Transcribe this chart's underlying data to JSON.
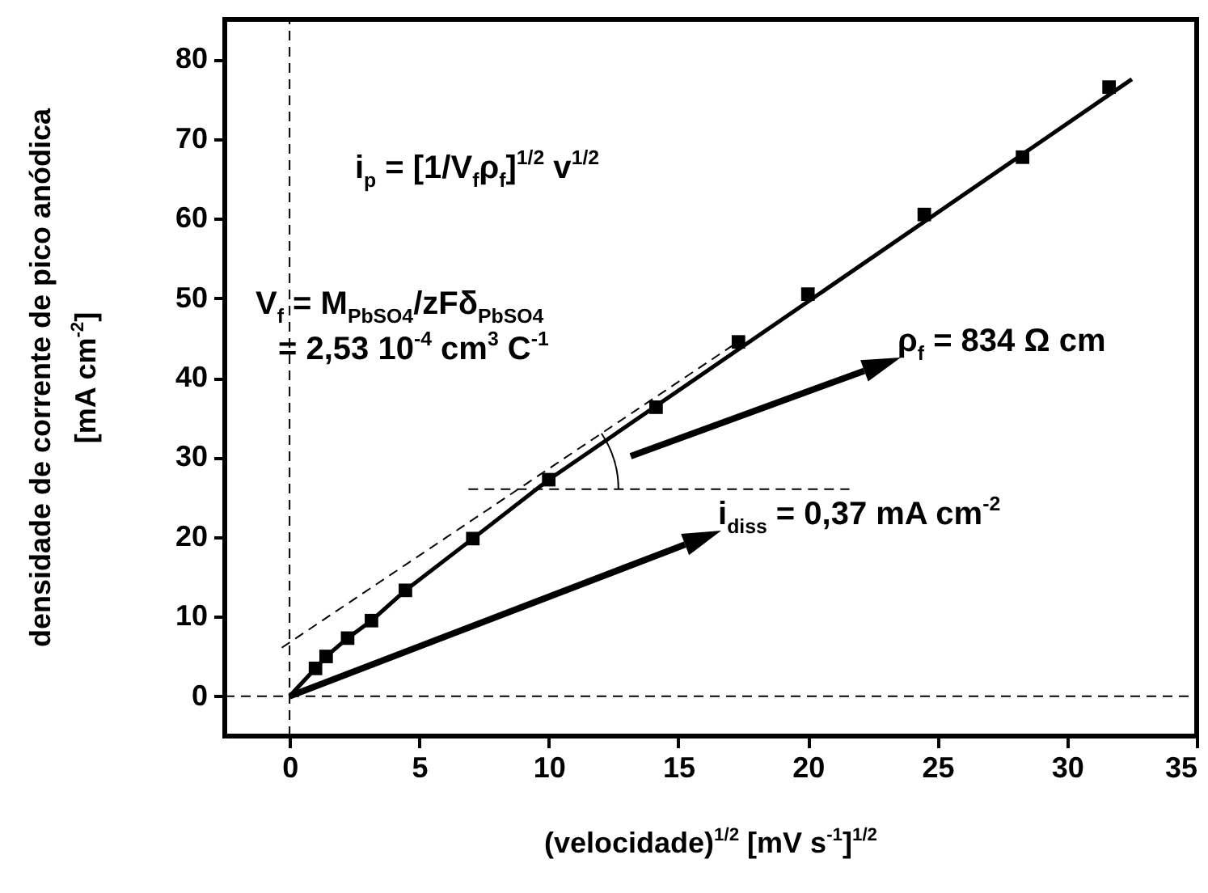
{
  "chart_data": {
    "type": "scatter",
    "xlabel": "(velocidade)$^{1/2}$ [mV s$^{-1}$]$^{1/2}$",
    "ylabel": "densidade de corrente de pico anódica\n[mA cm$^{-2}$]",
    "x": [
      1,
      1.41,
      2.24,
      3.16,
      4.47,
      7.07,
      10,
      14.14,
      17.32,
      20,
      24.49,
      28.28,
      31.62
    ],
    "series": [
      {
        "type": "scatter",
        "color": "#000000",
        "marker": "square",
        "values": [
          3.5,
          5,
          7.3,
          9.5,
          13.3,
          19.8,
          27.2,
          36.3,
          44.5,
          50.5,
          60.5,
          67.7,
          76.5
        ]
      },
      {
        "type": "line",
        "color": "#000000",
        "marker": "none",
        "x": [
          0,
          1,
          1.41,
          2.24,
          3.16,
          4.47,
          7.07,
          10,
          32.5
        ],
        "values": [
          0,
          3.5,
          5,
          7.3,
          9.5,
          13.3,
          19.8,
          27.2,
          77.5
        ]
      },
      {
        "type": "line",
        "color": "#000000",
        "marker": "none",
        "line_style": "dashed",
        "x": [
          -0.3,
          17.3
        ],
        "values": [
          6.1,
          44.5
        ]
      },
      {
        "type": "line",
        "color": "#000000",
        "marker": "none",
        "line_style": "dashed",
        "x": [
          6.9,
          21.6
        ],
        "values": [
          26,
          26
        ]
      },
      {
        "type": "line",
        "color": "#000000",
        "marker": "none",
        "line_style": "dashed",
        "x": [
          0,
          0
        ],
        "values": [
          -5,
          85
        ]
      },
      {
        "type": "line",
        "color": "#000000",
        "marker": "none",
        "line_style": "dashed",
        "x": [
          -2.5,
          35
        ],
        "values": [
          0,
          0
        ]
      }
    ],
    "xlim": [
      -2.5,
      35
    ],
    "xticks": [
      0,
      5,
      10,
      15,
      20,
      25,
      30,
      35
    ],
    "ylim": [
      -5,
      85
    ],
    "yticks": [
      0,
      10,
      20,
      30,
      40,
      50,
      60,
      70,
      80
    ],
    "grid": false,
    "annotations": [
      "i$_{p}$ = [1/V$_{f}$ρ$_{f}$]$^{1/2}$ v$^{1/2}$",
      "V$_{f}$ = M$_{PbSO4}$/zFδ$_{PbSO4}$",
      "= 2,53 10$^{-4}$ cm$^{3}$ C$^{-1}$",
      "ρ$_{f}$ = 834 Ω cm",
      {
        "text": "i$_{diss}$ = 0,37 mA cm$^{-2}$",
        "x": 0,
        "y": 0
      }
    ]
  }
}
